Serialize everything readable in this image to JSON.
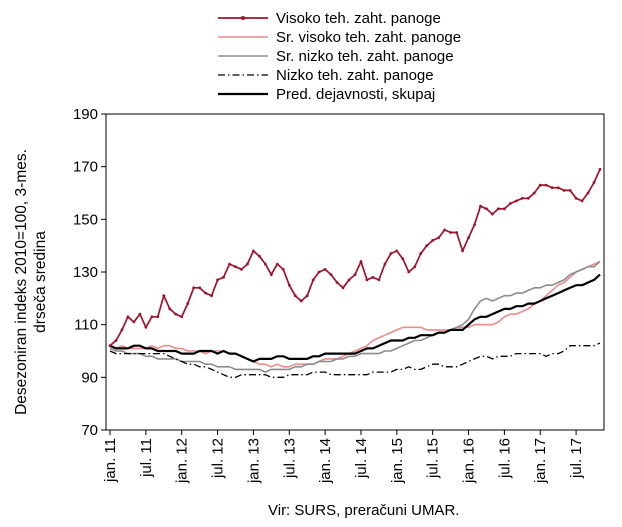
{
  "chart_data": {
    "type": "line",
    "ylabel": "Desezoniran indeks 2010=100, 3-mes. drseča sredina",
    "ylim": [
      70,
      190
    ],
    "yticks": [
      70,
      90,
      110,
      130,
      150,
      170,
      190
    ],
    "x_start": "jan. 11",
    "x_end": "okt. 17",
    "xticks": [
      "jan. 11",
      "jul. 11",
      "jan. 12",
      "jul. 12",
      "jan. 13",
      "jul. 13",
      "jan. 14",
      "jul. 14",
      "jan. 15",
      "jul. 15",
      "jan. 16",
      "jul. 16",
      "jan. 17",
      "jul. 17"
    ],
    "grid": false,
    "legend_position": "top",
    "series": [
      {
        "name": "Visoko teh. zaht. panoge",
        "color": "#a0122a",
        "style": "solid-marker",
        "values": [
          102,
          104,
          108,
          113,
          111,
          114,
          109,
          113,
          113,
          121,
          116,
          114,
          113,
          118,
          124,
          124,
          122,
          121,
          127,
          128,
          133,
          132,
          131,
          133,
          138,
          136,
          133,
          129,
          133,
          131,
          125,
          121,
          119,
          121,
          127,
          130,
          131,
          129,
          126,
          124,
          127,
          129,
          134,
          127,
          128,
          127,
          133,
          137,
          138,
          135,
          130,
          132,
          137,
          140,
          142,
          143,
          146,
          145,
          145,
          138,
          143,
          148,
          155,
          154,
          152,
          154,
          154,
          156,
          157,
          158,
          158,
          160,
          163,
          163,
          162,
          162,
          161,
          161,
          158,
          157,
          160,
          164,
          169
        ]
      },
      {
        "name": "Sr. visoko teh. zaht. panoge",
        "color": "#e88c8c",
        "style": "solid",
        "values": [
          102,
          101,
          102,
          101,
          101,
          101,
          101,
          102,
          101,
          102,
          102,
          101,
          101,
          100,
          100,
          100,
          99,
          100,
          100,
          100,
          99,
          99,
          98,
          97,
          96,
          95,
          95,
          94,
          95,
          94,
          94,
          95,
          95,
          95,
          95,
          96,
          97,
          97,
          97,
          98,
          99,
          100,
          101,
          102,
          104,
          105,
          106,
          107,
          108,
          109,
          109,
          109,
          109,
          108,
          108,
          108,
          108,
          108,
          109,
          109,
          109,
          110,
          110,
          110,
          110,
          111,
          113,
          114,
          114,
          115,
          116,
          118,
          119,
          121,
          123,
          125,
          126,
          128,
          130,
          131,
          132,
          133,
          134
        ]
      },
      {
        "name": "Sr. nizko teh. zaht. panoge",
        "color": "#8c8c8c",
        "style": "solid",
        "values": [
          101,
          100,
          100,
          99,
          99,
          99,
          98,
          98,
          97,
          97,
          97,
          97,
          96,
          96,
          96,
          96,
          95,
          95,
          94,
          94,
          94,
          93,
          93,
          93,
          93,
          93,
          92,
          93,
          93,
          93,
          93,
          94,
          94,
          95,
          95,
          96,
          96,
          96,
          97,
          97,
          98,
          98,
          99,
          99,
          99,
          99,
          100,
          100,
          101,
          102,
          103,
          104,
          104,
          105,
          106,
          107,
          107,
          108,
          109,
          110,
          112,
          116,
          119,
          120,
          119,
          120,
          121,
          121,
          122,
          122,
          123,
          124,
          124,
          125,
          125,
          126,
          127,
          129,
          130,
          131,
          132,
          132,
          134
        ]
      },
      {
        "name": "Nizko teh. zaht. panoge",
        "color": "#000000",
        "style": "dash-dot",
        "values": [
          100,
          99,
          99,
          99,
          99,
          99,
          99,
          99,
          99,
          99,
          98,
          97,
          96,
          95,
          95,
          94,
          94,
          93,
          92,
          91,
          90,
          90,
          91,
          91,
          91,
          91,
          91,
          90,
          90,
          90,
          91,
          91,
          91,
          91,
          92,
          92,
          92,
          91,
          91,
          91,
          91,
          91,
          91,
          91,
          92,
          92,
          92,
          92,
          93,
          93,
          94,
          93,
          93,
          94,
          95,
          95,
          94,
          94,
          94,
          95,
          96,
          97,
          98,
          98,
          97,
          98,
          98,
          98,
          99,
          99,
          99,
          99,
          99,
          98,
          99,
          99,
          100,
          102,
          102,
          102,
          102,
          102,
          103
        ]
      },
      {
        "name": "Pred. dejavnosti, skupaj",
        "color": "#000000",
        "style": "solid-thick",
        "values": [
          102,
          101,
          101,
          101,
          102,
          102,
          101,
          101,
          100,
          100,
          100,
          100,
          99,
          99,
          99,
          100,
          100,
          100,
          99,
          100,
          99,
          99,
          98,
          97,
          96,
          97,
          97,
          97,
          98,
          98,
          97,
          97,
          97,
          97,
          98,
          98,
          99,
          99,
          99,
          99,
          99,
          99,
          100,
          101,
          101,
          102,
          103,
          104,
          104,
          104,
          105,
          105,
          106,
          106,
          106,
          107,
          107,
          108,
          108,
          108,
          110,
          112,
          113,
          113,
          114,
          115,
          116,
          116,
          117,
          117,
          118,
          118,
          119,
          120,
          121,
          122,
          123,
          124,
          125,
          125,
          126,
          127,
          129
        ]
      }
    ]
  },
  "source_text": "Vir: SURS, preračuni UMAR."
}
